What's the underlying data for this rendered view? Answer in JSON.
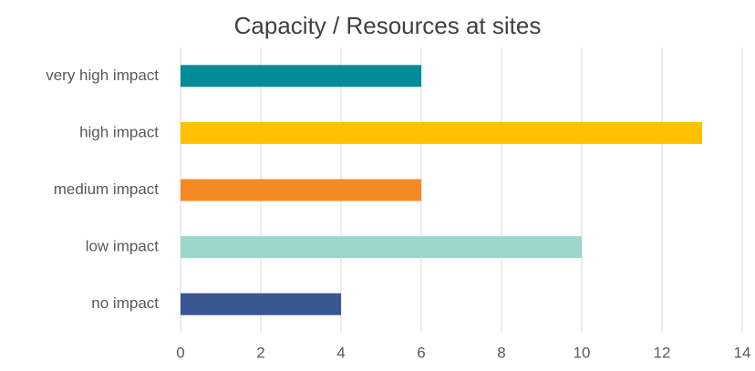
{
  "chart_data": {
    "type": "hbar",
    "title": "Capacity / Resources at sites",
    "categories": [
      "very high impact",
      "high impact",
      "medium impact",
      "low impact",
      "no impact"
    ],
    "values": [
      6,
      13,
      6,
      10,
      4
    ],
    "colors": [
      "#038b99",
      "#fdc100",
      "#f58a22",
      "#9bd7cd",
      "#3a5793"
    ],
    "xlim": [
      0,
      14
    ],
    "xticks": [
      0,
      2,
      4,
      6,
      8,
      10,
      12,
      14
    ],
    "grid": true
  }
}
